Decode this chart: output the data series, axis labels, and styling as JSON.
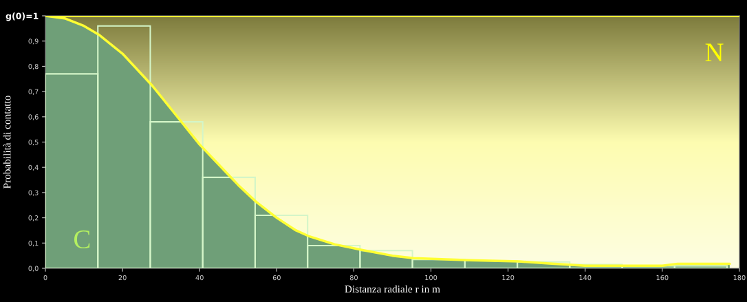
{
  "chart_data": {
    "type": "area",
    "xlabel": "Distanza radiale r in m",
    "ylabel": "Probabilità di contatto",
    "annotations": [
      "C",
      "N"
    ],
    "xlim": [
      0,
      180
    ],
    "xticks": [
      0,
      20,
      40,
      60,
      80,
      100,
      120,
      140,
      160,
      180
    ],
    "ylim": [
      0,
      1
    ],
    "yticks": [
      {
        "value": 0,
        "label": "0,0"
      },
      {
        "value": 0.1,
        "label": "0,1"
      },
      {
        "value": 0.2,
        "label": "0,2"
      },
      {
        "value": 0.3,
        "label": "0,3"
      },
      {
        "value": 0.4,
        "label": "0,4"
      },
      {
        "value": 0.5,
        "label": "0,5"
      },
      {
        "value": 0.6,
        "label": "0,6"
      },
      {
        "value": 0.7,
        "label": "0,7"
      },
      {
        "value": 0.8,
        "label": "0,8"
      },
      {
        "value": 0.9,
        "label": "0,9"
      },
      {
        "value": 1,
        "label": "g(0)=1"
      }
    ],
    "ref_lines": [
      {
        "axis": "y",
        "value": 1,
        "label": null,
        "color": "#ffff33"
      }
    ],
    "grid": false,
    "legend": false,
    "series": [
      {
        "color": "#ffff33",
        "x": [
          0,
          5,
          10,
          13.8,
          20,
          27.5,
          30,
          37.6,
          40,
          45,
          50,
          54.6,
          60,
          65,
          68.2,
          75,
          82,
          90,
          95.5,
          110,
          123,
          130,
          140,
          150,
          160,
          164,
          177.5
        ],
        "values": [
          1,
          0.99,
          0.96,
          0.926,
          0.85,
          0.727,
          0.68,
          0.536,
          0.49,
          0.41,
          0.33,
          0.264,
          0.2,
          0.15,
          0.128,
          0.095,
          0.073,
          0.05,
          0.04,
          0.032,
          0.027,
          0.02,
          0.01,
          0.01,
          0.01,
          0.018,
          0.018
        ]
      },
      {
        "type": "histogram",
        "color": "#d4f5c8",
        "bins": [
          0,
          13.6,
          27.2,
          40.8,
          54.4,
          68,
          81.6,
          95.2,
          108.8,
          122.4,
          136,
          149.6,
          163.2,
          176.8
        ],
        "values": [
          0.77,
          0.96,
          0.58,
          0.36,
          0.21,
          0.09,
          0.07,
          0.035,
          0.03,
          0.025,
          0.015,
          0.01,
          0.01
        ]
      }
    ]
  }
}
